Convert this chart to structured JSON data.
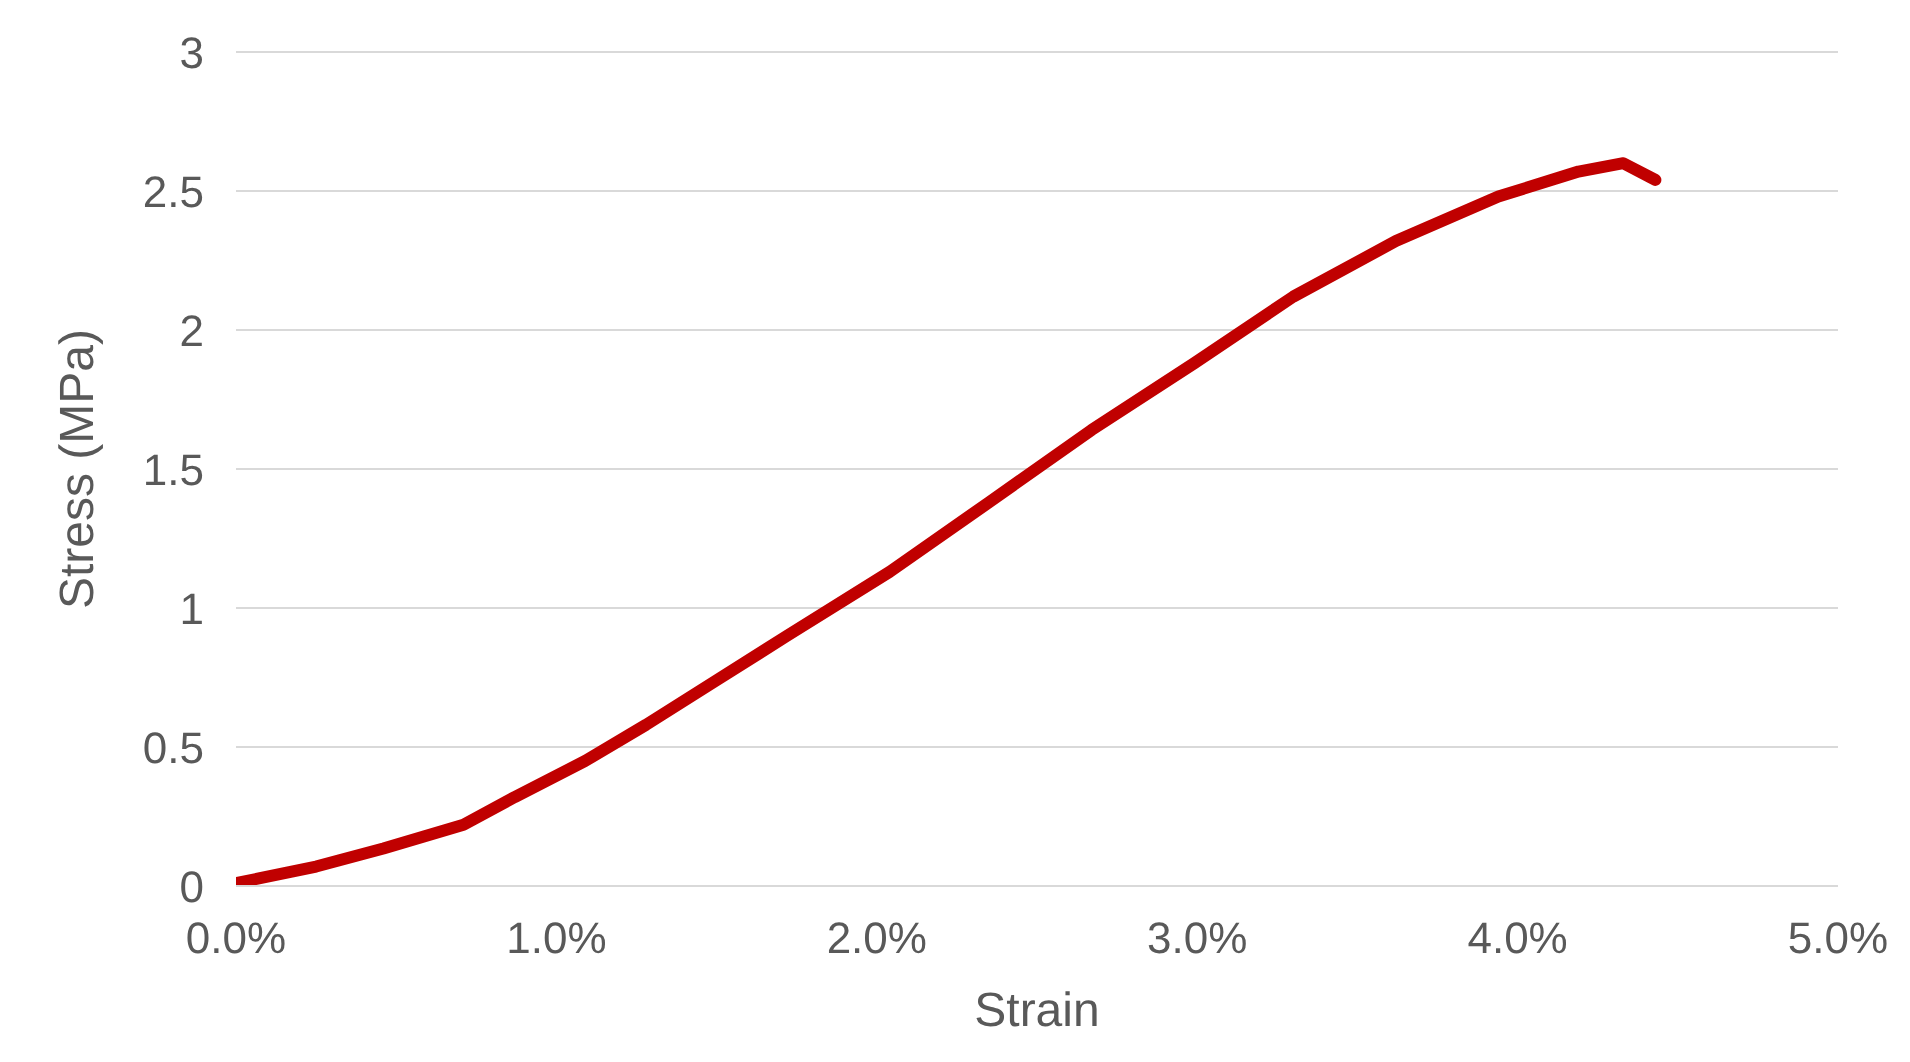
{
  "chart_data": {
    "type": "line",
    "xlabel": "Strain",
    "ylabel": "Stress (MPa)",
    "x": [
      0,
      0.0025,
      0.0046,
      0.0071,
      0.0087,
      0.0109,
      0.0128,
      0.015,
      0.0172,
      0.0204,
      0.0235,
      0.0267,
      0.0299,
      0.033,
      0.0362,
      0.0394,
      0.0419,
      0.0433,
      0.0443
    ],
    "series": [
      {
        "color": "#c00000",
        "values": [
          0.01,
          0.07,
          0.135,
          0.22,
          0.32,
          0.45,
          0.58,
          0.74,
          0.9,
          1.13,
          1.38,
          1.64,
          1.88,
          2.12,
          2.32,
          2.48,
          2.57,
          2.6,
          2.54
        ]
      }
    ],
    "xlim": [
      0,
      0.05
    ],
    "xticks": [
      {
        "value": 0,
        "label": "0.0%"
      },
      {
        "value": 0.01,
        "label": "1.0%"
      },
      {
        "value": 0.02,
        "label": "2.0%"
      },
      {
        "value": 0.03,
        "label": "3.0%"
      },
      {
        "value": 0.04,
        "label": "4.0%"
      },
      {
        "value": 0.05,
        "label": "5.0%"
      }
    ],
    "ylim": [
      0,
      3
    ],
    "yticks": [
      0,
      0.5,
      1,
      1.5,
      2,
      2.5,
      3
    ],
    "grid": "y",
    "marker": "none",
    "line_style": "solid"
  }
}
